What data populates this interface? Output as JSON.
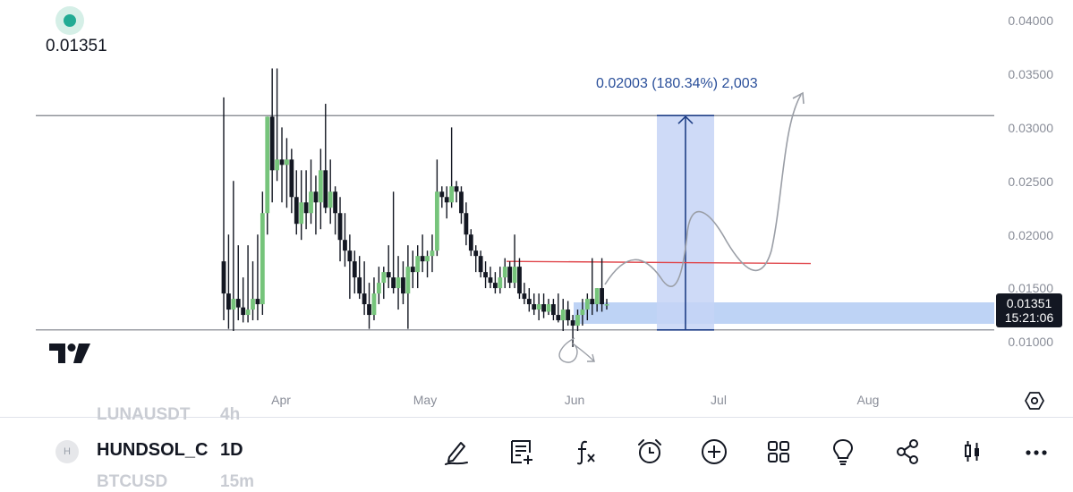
{
  "header": {
    "last_price": "0.01351"
  },
  "price_scale": {
    "ticks": [
      "0.04000",
      "0.03500",
      "0.03000",
      "0.02500",
      "0.02000",
      "0.01500",
      "0.01000"
    ],
    "current_price": "0.01351",
    "countdown": "15:21:06"
  },
  "time_scale": {
    "ticks": [
      "Apr",
      "May",
      "Jun",
      "Jul",
      "Aug"
    ]
  },
  "drawings": {
    "measure_label": "0.02003 (180.34%) 2,003",
    "measure_from_price": 0.0111,
    "measure_to_price": 0.0311,
    "resistance_price": 0.0175,
    "top_line_price": 0.0311,
    "bottom_line_price": 0.0111
  },
  "colors": {
    "bull": "#76c47b",
    "bear": "#131722",
    "measure_fill": "#c6d4f6",
    "measure_line": "#1f3f86",
    "resistance_line": "#e0474c",
    "accent_green": "#22ab94"
  },
  "chart_data": {
    "type": "candlestick",
    "symbol": "HUNDSOL_C",
    "interval": "1D",
    "ylim": [
      0.009,
      0.0405
    ],
    "y_ticks": [
      0.04,
      0.035,
      0.03,
      0.025,
      0.02,
      0.015,
      0.01
    ],
    "x_ticks": [
      "Apr",
      "May",
      "Jun",
      "Jul",
      "Aug"
    ],
    "candles": [
      [
        0.0175,
        0.0328,
        0.012,
        0.0145
      ],
      [
        0.0145,
        0.02,
        0.0112,
        0.013
      ],
      [
        0.013,
        0.025,
        0.011,
        0.014
      ],
      [
        0.014,
        0.019,
        0.012,
        0.0132
      ],
      [
        0.0132,
        0.016,
        0.0118,
        0.0125
      ],
      [
        0.0125,
        0.019,
        0.0118,
        0.013
      ],
      [
        0.013,
        0.0175,
        0.012,
        0.014
      ],
      [
        0.014,
        0.02,
        0.012,
        0.0135
      ],
      [
        0.0135,
        0.024,
        0.0125,
        0.022
      ],
      [
        0.022,
        0.031,
        0.02,
        0.031
      ],
      [
        0.031,
        0.0355,
        0.023,
        0.026
      ],
      [
        0.026,
        0.0355,
        0.025,
        0.027
      ],
      [
        0.027,
        0.03,
        0.023,
        0.0265
      ],
      [
        0.0265,
        0.029,
        0.0225,
        0.027
      ],
      [
        0.027,
        0.028,
        0.022,
        0.0235
      ],
      [
        0.0235,
        0.026,
        0.02,
        0.021
      ],
      [
        0.021,
        0.026,
        0.0195,
        0.023
      ],
      [
        0.023,
        0.026,
        0.0205,
        0.022
      ],
      [
        0.022,
        0.027,
        0.021,
        0.024
      ],
      [
        0.024,
        0.0255,
        0.02,
        0.023
      ],
      [
        0.023,
        0.028,
        0.0205,
        0.026
      ],
      [
        0.026,
        0.0322,
        0.022,
        0.0225
      ],
      [
        0.0225,
        0.027,
        0.021,
        0.024
      ],
      [
        0.024,
        0.0245,
        0.02,
        0.022
      ],
      [
        0.022,
        0.0235,
        0.0175,
        0.0195
      ],
      [
        0.0195,
        0.022,
        0.017,
        0.0185
      ],
      [
        0.0185,
        0.02,
        0.014,
        0.0175
      ],
      [
        0.0175,
        0.0185,
        0.0145,
        0.016
      ],
      [
        0.016,
        0.018,
        0.014,
        0.0145
      ],
      [
        0.0145,
        0.0175,
        0.0125,
        0.0135
      ],
      [
        0.0135,
        0.0155,
        0.0112,
        0.0125
      ],
      [
        0.0125,
        0.016,
        0.012,
        0.0145
      ],
      [
        0.0145,
        0.017,
        0.0135,
        0.0155
      ],
      [
        0.0155,
        0.017,
        0.014,
        0.0165
      ],
      [
        0.0165,
        0.019,
        0.015,
        0.016
      ],
      [
        0.016,
        0.024,
        0.0145,
        0.015
      ],
      [
        0.015,
        0.018,
        0.013,
        0.016
      ],
      [
        0.016,
        0.0175,
        0.0135,
        0.0145
      ],
      [
        0.0145,
        0.019,
        0.0112,
        0.017
      ],
      [
        0.017,
        0.0185,
        0.015,
        0.0165
      ],
      [
        0.0165,
        0.019,
        0.015,
        0.018
      ],
      [
        0.018,
        0.02,
        0.0165,
        0.0175
      ],
      [
        0.0175,
        0.0185,
        0.016,
        0.018
      ],
      [
        0.018,
        0.02,
        0.0165,
        0.0185
      ],
      [
        0.0185,
        0.027,
        0.018,
        0.024
      ],
      [
        0.024,
        0.0245,
        0.0225,
        0.0235
      ],
      [
        0.0235,
        0.0245,
        0.0215,
        0.023
      ],
      [
        0.023,
        0.03,
        0.0225,
        0.0245
      ],
      [
        0.0245,
        0.025,
        0.023,
        0.024
      ],
      [
        0.024,
        0.0245,
        0.021,
        0.022
      ],
      [
        0.022,
        0.023,
        0.019,
        0.02
      ],
      [
        0.02,
        0.0205,
        0.018,
        0.0185
      ],
      [
        0.0185,
        0.019,
        0.0165,
        0.018
      ],
      [
        0.018,
        0.0185,
        0.016,
        0.0165
      ],
      [
        0.0165,
        0.0175,
        0.015,
        0.016
      ],
      [
        0.016,
        0.017,
        0.015,
        0.0155
      ],
      [
        0.0155,
        0.0165,
        0.0145,
        0.015
      ],
      [
        0.015,
        0.017,
        0.0145,
        0.016
      ],
      [
        0.016,
        0.0178,
        0.015,
        0.017
      ],
      [
        0.017,
        0.0175,
        0.015,
        0.0155
      ],
      [
        0.0155,
        0.02,
        0.015,
        0.017
      ],
      [
        0.017,
        0.0178,
        0.014,
        0.0145
      ],
      [
        0.0145,
        0.0155,
        0.0135,
        0.014
      ],
      [
        0.014,
        0.015,
        0.0128,
        0.0135
      ],
      [
        0.0135,
        0.0145,
        0.0125,
        0.013
      ],
      [
        0.013,
        0.0145,
        0.012,
        0.0135
      ],
      [
        0.0135,
        0.0145,
        0.0122,
        0.0128
      ],
      [
        0.0128,
        0.014,
        0.0125,
        0.0135
      ],
      [
        0.0135,
        0.014,
        0.012,
        0.0125
      ],
      [
        0.0125,
        0.0145,
        0.0118,
        0.012
      ],
      [
        0.012,
        0.014,
        0.011,
        0.013
      ],
      [
        0.013,
        0.0138,
        0.0115,
        0.012
      ],
      [
        0.012,
        0.0125,
        0.0095,
        0.0115
      ],
      [
        0.0115,
        0.013,
        0.011,
        0.0125
      ],
      [
        0.0125,
        0.014,
        0.0115,
        0.013
      ],
      [
        0.013,
        0.0145,
        0.012,
        0.014
      ],
      [
        0.014,
        0.0178,
        0.0125,
        0.0135
      ],
      [
        0.0135,
        0.015,
        0.0128,
        0.015
      ],
      [
        0.015,
        0.0178,
        0.0128,
        0.0135
      ],
      [
        0.0135,
        0.014,
        0.013,
        0.0135
      ]
    ]
  },
  "bottom_bar": {
    "ghost_above_symbol": "LUNAUSDT",
    "ghost_above_interval": "4h",
    "badge": "H",
    "symbol": "HUNDSOL_C",
    "interval": "1D",
    "ghost_below_symbol": "BTCUSD",
    "ghost_below_interval": "15m",
    "tools": [
      "pen-icon",
      "note-icon",
      "indicator-icon",
      "alarm-icon",
      "add-icon",
      "layouts-icon",
      "ideas-icon",
      "share-icon",
      "candle-style-icon",
      "more-icon"
    ]
  }
}
